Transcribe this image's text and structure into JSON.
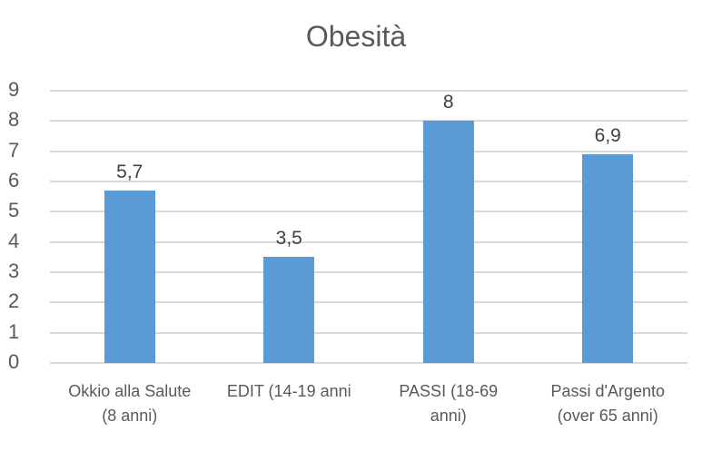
{
  "title": "Obesità",
  "colors": {
    "bar": "#5b9bd5",
    "gridline": "#d9d9d9",
    "axis_text": "#595959",
    "value_label_text": "#404040",
    "background": "#ffffff"
  },
  "chart_data": {
    "type": "bar",
    "title": "Obesità",
    "categories": [
      "Okkio alla Salute (8 anni)",
      "EDIT (14-19 anni",
      "PASSI (18-69 anni)",
      "Passi d'Argento (over 65 anni)"
    ],
    "category_lines": [
      [
        "Okkio alla Salute",
        "(8 anni)"
      ],
      [
        "EDIT (14-19 anni"
      ],
      [
        "PASSI (18-69",
        "anni)"
      ],
      [
        "Passi d'Argento",
        "(over 65 anni)"
      ]
    ],
    "values": [
      5.7,
      3.5,
      8,
      6.9
    ],
    "value_labels": [
      "5,7",
      "3,5",
      "8",
      "6,9"
    ],
    "xlabel": "",
    "ylabel": "",
    "ylim": [
      0,
      9
    ],
    "y_ticks": [
      "0",
      "1",
      "2",
      "3",
      "4",
      "5",
      "6",
      "7",
      "8",
      "9"
    ],
    "grid": true,
    "legend": false
  }
}
